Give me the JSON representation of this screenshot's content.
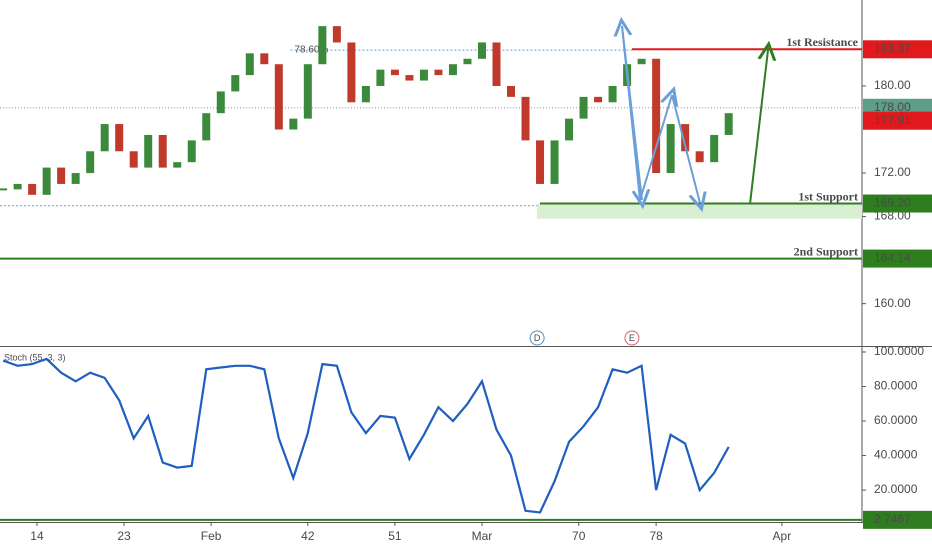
{
  "chart_data": {
    "type": "candlestick",
    "x": [
      10.5,
      12,
      13.5,
      15,
      16.5,
      18,
      19.5,
      21,
      22.5,
      24,
      25.5,
      27,
      28.5,
      30,
      31.5,
      33,
      34.5,
      36,
      37.5,
      39,
      40.5,
      42,
      43.5,
      45,
      46.5,
      48,
      49.5,
      51,
      52.5,
      54,
      55.5,
      57,
      58.5,
      60,
      61.5,
      63,
      64.5,
      66,
      67.5,
      69,
      70.5,
      72,
      73.5,
      75,
      76.5,
      78,
      79.5,
      81,
      82.5,
      84,
      85.5
    ],
    "close": [
      170.5,
      171,
      170,
      172.5,
      171,
      172,
      174,
      176.5,
      174,
      172.5,
      175.5,
      172.5,
      173,
      175,
      177.5,
      179.5,
      181,
      183,
      182,
      176,
      177,
      182,
      185.5,
      184,
      178.5,
      180,
      181.5,
      181,
      180.5,
      181.5,
      181,
      182,
      182.5,
      184,
      180,
      179,
      175,
      171,
      175,
      177,
      179,
      178.5,
      180,
      182,
      182.5,
      172,
      176.5,
      174,
      173,
      175.5,
      177.5
    ],
    "up_color": "#3b8a3b",
    "down_color": "#c0392b",
    "xlim": [
      10.18,
      99.28
    ],
    "xticks": [
      14,
      23,
      {
        "value": 32,
        "label": "Feb"
      },
      42,
      51,
      {
        "value": 60,
        "label": "Mar"
      },
      70,
      78,
      {
        "value": 91,
        "label": "Apr"
      }
    ],
    "ylim": [
      156.2,
      187.9
    ],
    "yticks": [
      {
        "value": 160,
        "label": "160.00"
      },
      {
        "value": 168,
        "label": "168.00"
      },
      {
        "value": 172,
        "label": "172.00"
      },
      {
        "value": 180,
        "label": "180.00"
      }
    ],
    "levels": [
      {
        "name": "1st Resistance",
        "value": 183.37,
        "color": "#e0191c",
        "x_start": 75.5
      },
      {
        "name": "1st Support",
        "value": 169.2,
        "label": "169.20",
        "color": "#2e7d1e",
        "x_start": 66,
        "zone_low": 167.8
      },
      {
        "name": "2nd Support",
        "value": 164.14,
        "color": "#2e7d1e"
      }
    ],
    "fib": [
      {
        "label": "78.60%",
        "value": 183.3,
        "x_start": 40.2,
        "x_end": 75.5
      },
      {
        "value": 169.0,
        "x_end": 66
      }
    ],
    "last_price": {
      "value": 178,
      "label": "178.00"
    },
    "close_price": 177.91,
    "events": [
      {
        "label": "D",
        "x": 65.7,
        "color": "#4a90c8"
      },
      {
        "label": "E",
        "x": 75.5,
        "color": "#e05a6a"
      }
    ],
    "oscillator": {
      "title": "Stoch (55, 3, 3)",
      "color": "#1f5fbf",
      "values": [
        95,
        92,
        93,
        96,
        88,
        83,
        88,
        85,
        72,
        50,
        63,
        36,
        33,
        34,
        90,
        91,
        92,
        92,
        90,
        50,
        27,
        53,
        93,
        92,
        65,
        53,
        63,
        62,
        38,
        52,
        68,
        60,
        70,
        83,
        55,
        40,
        8,
        7,
        25,
        48,
        57,
        68,
        90,
        88,
        92,
        20,
        52,
        47,
        20,
        30,
        45
      ],
      "ylim": [
        1.5,
        102.9
      ],
      "yticks": [
        {
          "value": 20,
          "label": "20.0000"
        },
        {
          "value": 40,
          "label": "40.0000"
        },
        {
          "value": 60,
          "label": "60.0000"
        },
        {
          "value": 80,
          "label": "80.0000"
        },
        {
          "value": 100,
          "label": "100.0000"
        }
      ],
      "level": 2.7467,
      "level_color": "#2e7d1e"
    }
  }
}
